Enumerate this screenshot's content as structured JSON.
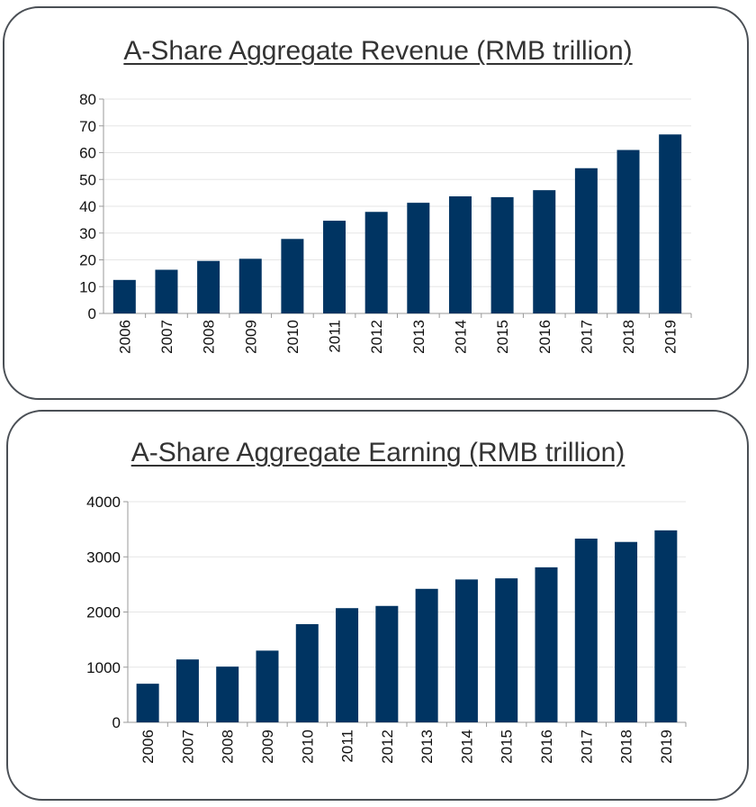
{
  "colors": {
    "bar": "#003462",
    "axis": "#9a9a9a",
    "grid": "#e6e6e6",
    "panel_border": "#4a4f55",
    "title": "#333333"
  },
  "chart_data": [
    {
      "type": "bar",
      "title": "A-Share Aggregate Revenue (RMB trillion)",
      "categories": [
        "2006",
        "2007",
        "2008",
        "2009",
        "2010",
        "2011",
        "2012",
        "2013",
        "2014",
        "2015",
        "2016",
        "2017",
        "2018",
        "2019"
      ],
      "values": [
        12.5,
        16.3,
        19.6,
        20.4,
        27.8,
        34.6,
        37.9,
        41.3,
        43.7,
        43.4,
        46.0,
        54.2,
        61.0,
        66.8
      ],
      "xlabel": "",
      "ylabel": "",
      "ylim": [
        0,
        80
      ],
      "yticks": [
        0,
        10,
        20,
        30,
        40,
        50,
        60,
        70,
        80
      ],
      "grid": true,
      "legend": "none"
    },
    {
      "type": "bar",
      "title": "A-Share Aggregate Earning (RMB trillion)",
      "categories": [
        "2006",
        "2007",
        "2008",
        "2009",
        "2010",
        "2011",
        "2012",
        "2013",
        "2014",
        "2015",
        "2016",
        "2017",
        "2018",
        "2019"
      ],
      "values": [
        700,
        1140,
        1010,
        1300,
        1780,
        2070,
        2110,
        2420,
        2590,
        2610,
        2810,
        3330,
        3270,
        3480
      ],
      "xlabel": "",
      "ylabel": "",
      "ylim": [
        0,
        4000
      ],
      "yticks": [
        0,
        1000,
        2000,
        3000,
        4000
      ],
      "grid": true,
      "legend": "none"
    }
  ]
}
